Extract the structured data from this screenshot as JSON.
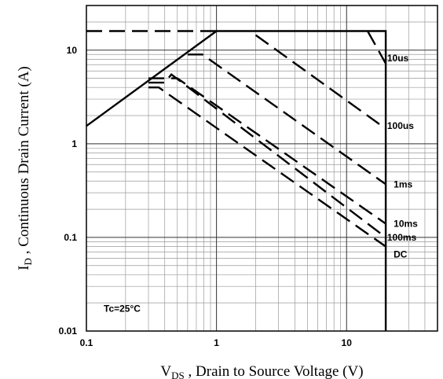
{
  "chart_data": {
    "type": "line",
    "title": "",
    "xlabel": {
      "main": "V",
      "sub": "DS",
      "rest": " , Drain to Source Voltage (V)"
    },
    "ylabel": {
      "main": "I",
      "sub": "D",
      "rest": " , Continuous Drain Current (A)"
    },
    "x_scale": "log",
    "y_scale": "log",
    "xlim": [
      0.1,
      50
    ],
    "ylim": [
      0.01,
      30
    ],
    "x_ticks": [
      {
        "v": 0.1,
        "label": "0.1"
      },
      {
        "v": 1,
        "label": "1"
      },
      {
        "v": 10,
        "label": "10"
      }
    ],
    "y_ticks": [
      {
        "v": 0.01,
        "label": "0.01"
      },
      {
        "v": 0.1,
        "label": "0.1"
      },
      {
        "v": 1,
        "label": "1"
      },
      {
        "v": 10,
        "label": "10"
      }
    ],
    "grid": true,
    "annotation": "Tc=25°C",
    "series": [
      {
        "style": "solid",
        "x": [
          0.1,
          1,
          20,
          20
        ],
        "y": [
          1.55,
          16,
          16,
          0.01
        ]
      },
      {
        "style": "dash",
        "x": [
          0.1,
          1
        ],
        "y": [
          16,
          16
        ]
      },
      {
        "style": "dash",
        "x": [
          14.5,
          20
        ],
        "y": [
          16,
          7.2
        ]
      },
      {
        "style": "dash",
        "x": [
          2,
          20
        ],
        "y": [
          14.5,
          1.45
        ]
      },
      {
        "style": "dash",
        "x": [
          0.6,
          0.78,
          20
        ],
        "y": [
          9,
          9,
          0.37
        ]
      },
      {
        "style": "dash",
        "x": [
          0.3,
          0.5,
          20
        ],
        "y": [
          5,
          5,
          0.14
        ]
      },
      {
        "style": "dash",
        "x": [
          0.3,
          0.4,
          0.45,
          20
        ],
        "y": [
          4.5,
          4.5,
          5.5,
          0.1
        ]
      },
      {
        "style": "dash",
        "x": [
          0.3,
          0.36,
          20
        ],
        "y": [
          4,
          4,
          0.08
        ]
      }
    ],
    "curve_labels": [
      {
        "text": "10us",
        "x": 20.5,
        "y": 8.2
      },
      {
        "text": "100us",
        "x": 20.5,
        "y": 1.55
      },
      {
        "text": "1ms",
        "x": 23,
        "y": 0.37
      },
      {
        "text": "10ms",
        "x": 23,
        "y": 0.14
      },
      {
        "text": "100ms",
        "x": 20.5,
        "y": 0.1
      },
      {
        "text": "DC",
        "x": 23,
        "y": 0.066
      }
    ]
  }
}
